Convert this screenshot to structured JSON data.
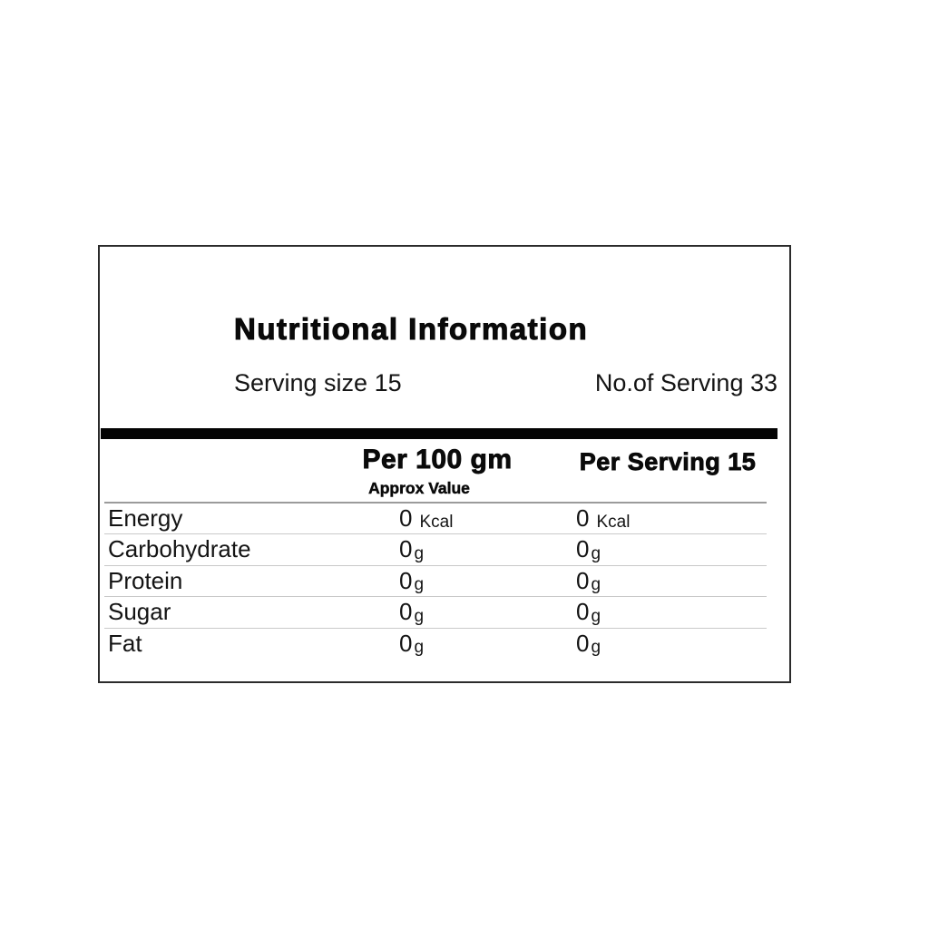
{
  "label": {
    "title": "Nutritional Information",
    "serving_size": "Serving size 15",
    "no_of_serving": "No.of Serving 33",
    "header": {
      "per_100": "Per 100 gm",
      "per_serving": "Per Serving 15",
      "approx": "Approx Value"
    },
    "rows": [
      {
        "label": "Energy",
        "per100_value": "0",
        "per100_unit": "Kcal",
        "serving_value": "0",
        "serving_unit": "Kcal"
      },
      {
        "label": "Carbohydrate",
        "per100_value": "0",
        "per100_unit": "g",
        "serving_value": "0",
        "serving_unit": "g"
      },
      {
        "label": "Protein",
        "per100_value": "0",
        "per100_unit": "g",
        "serving_value": "0",
        "serving_unit": "g"
      },
      {
        "label": "Sugar",
        "per100_value": "0",
        "per100_unit": "g",
        "serving_value": "0",
        "serving_unit": "g"
      },
      {
        "label": "Fat",
        "per100_value": "0",
        "per100_unit": "g",
        "serving_value": "0",
        "serving_unit": "g"
      }
    ],
    "colors": {
      "text": "#141414",
      "box_border": "#2b2b2b",
      "separator_bar": "#030303",
      "divider_dark": "#9b9b9b",
      "divider_light": "#c9c9c9",
      "background": "#ffffff"
    }
  }
}
